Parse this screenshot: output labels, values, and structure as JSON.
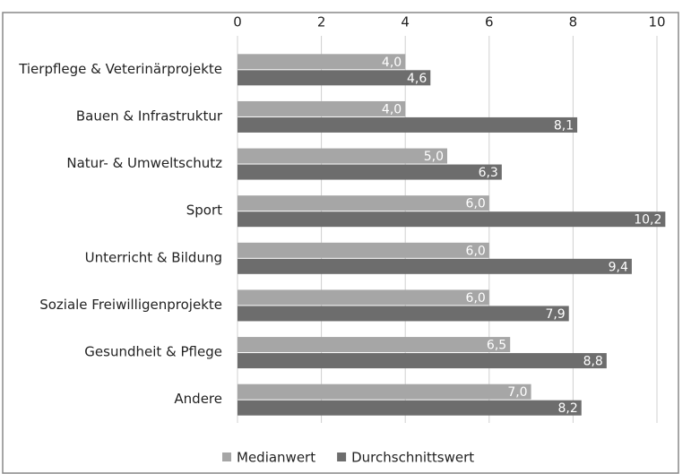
{
  "chart_data": {
    "type": "bar",
    "orientation": "horizontal",
    "categories": [
      "Tierpflege & Veterinärprojekte",
      "Bauen & Infrastruktur",
      "Natur- & Umweltschutz",
      "Sport",
      "Unterricht & Bildung",
      "Soziale Freiwilligenprojekte",
      "Gesundheit & Pflege",
      "Andere"
    ],
    "series": [
      {
        "name": "Medianwert",
        "color": "#a6a6a6",
        "values": [
          4.0,
          4.0,
          5.0,
          6.0,
          6.0,
          6.0,
          6.5,
          7.0
        ],
        "value_labels": [
          "4,0",
          "4,0",
          "5,0",
          "6,0",
          "6,0",
          "6,0",
          "6,5",
          "7,0"
        ]
      },
      {
        "name": "Durchschnittswert",
        "color": "#6d6d6d",
        "values": [
          4.6,
          8.1,
          6.3,
          10.2,
          9.4,
          7.9,
          8.8,
          8.2
        ],
        "value_labels": [
          "4,6",
          "8,1",
          "6,3",
          "10,2",
          "9,4",
          "7,9",
          "8,8",
          "8,2"
        ]
      }
    ],
    "xlim": [
      0,
      10
    ],
    "xticks": [
      0,
      2,
      4,
      6,
      8,
      10
    ],
    "grid": true,
    "legend": "bottom"
  }
}
